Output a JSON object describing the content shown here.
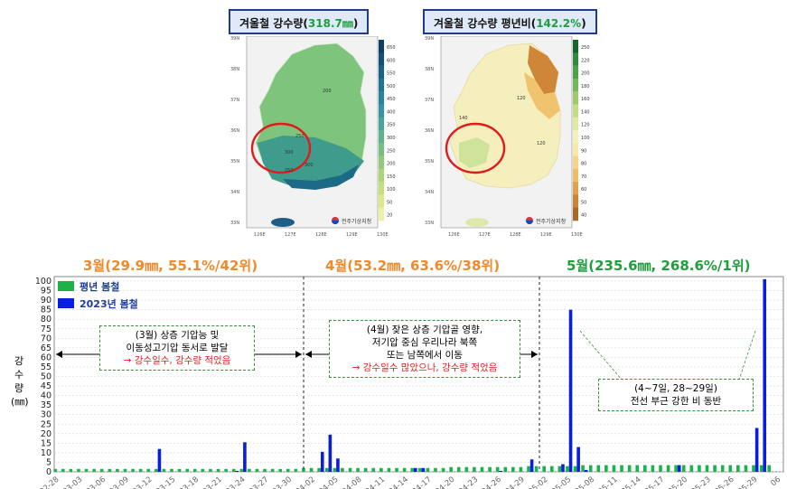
{
  "maps": {
    "left": {
      "title_prefix": "겨울철 강수량(",
      "title_value": "318.7㎜",
      "title_suffix": ")",
      "legend_ticks": [
        "650",
        "600",
        "550",
        "500",
        "450",
        "400",
        "350",
        "300",
        "250",
        "200",
        "150",
        "100",
        "50",
        "20"
      ],
      "legend_colors": [
        "#0c3e66",
        "#11507a",
        "#17618a",
        "#1d7497",
        "#25859e",
        "#3495a0",
        "#47a49a",
        "#5fb28f",
        "#78be84",
        "#93c97c",
        "#aed478",
        "#c7de7c",
        "#dde88b",
        "#edf1a3"
      ],
      "contour_labels": [
        "200",
        "250",
        "300",
        "250",
        "300"
      ],
      "x_ticks": [
        "126E",
        "127E",
        "128E",
        "129E",
        "130E"
      ],
      "y_ticks": [
        "39N",
        "38N",
        "37N",
        "36N",
        "35N",
        "34N",
        "33N"
      ],
      "logo_text": "전주기상지청"
    },
    "right": {
      "title_prefix": "겨울철 강수량 평년비(",
      "title_value": "142.2%",
      "title_suffix": ")",
      "legend_ticks": [
        "250",
        "220",
        "200",
        "180",
        "160",
        "140",
        "120",
        "100",
        "90",
        "80",
        "70",
        "60",
        "50",
        "40"
      ],
      "legend_colors": [
        "#17632c",
        "#2e8a3e",
        "#4ea04b",
        "#74b65a",
        "#9ccb6c",
        "#c3dd84",
        "#e0ea9f",
        "#f3f1bb",
        "#f8e7a8",
        "#f5d48a",
        "#eebd6a",
        "#e0a14c",
        "#c98436",
        "#a8682a"
      ],
      "contour_labels": [
        "140",
        "120",
        "120"
      ],
      "x_ticks": [
        "126E",
        "127E",
        "128E",
        "129E",
        "130E"
      ],
      "y_ticks": [
        "39N",
        "38N",
        "37N",
        "36N",
        "35N",
        "34N",
        "33N"
      ],
      "logo_text": "전주기상지청"
    }
  },
  "months": {
    "march": {
      "text": "3월(29.9㎜, 55.1%/42위)",
      "color": "#f0892a"
    },
    "april": {
      "text": "4월(53.2㎜, 63.6%/38위)",
      "color": "#f0892a"
    },
    "may": {
      "text": "5월(235.6㎜, 268.6%/1위)",
      "color": "#1e9e3c"
    }
  },
  "annotations": {
    "march": {
      "line1": "(3월) 상층 기압능 및",
      "line2": "이동성고기압 동서로 발달",
      "line3": "→ 강수일수, 강수량 적었음"
    },
    "april": {
      "line1": "(4월) 잦은 상층 기압골 영향,",
      "line2": "저기압 중심 우리나라 북쪽",
      "line3": "또는 남쪽에서 이동",
      "line4": "→ 강수일수 많았으나, 강수량 적었음"
    },
    "may": {
      "line1": "(4~7일, 28~29일)",
      "line2": "전선 부근 강한 비 동반"
    }
  },
  "y_axis_label": [
    "강",
    "수",
    "량",
    "(㎜)"
  ],
  "chart_data": {
    "type": "bar",
    "ylim": [
      0,
      100
    ],
    "y_ticks": [
      0,
      5,
      10,
      15,
      20,
      25,
      30,
      35,
      40,
      45,
      50,
      55,
      60,
      65,
      70,
      75,
      80,
      85,
      90,
      95,
      100
    ],
    "grid": "dashed",
    "legend_placement": "top-left",
    "x_tick_labels": [
      "02-28",
      "03-03",
      "03-06",
      "03-09",
      "03-12",
      "03-15",
      "03-18",
      "03-21",
      "03-24",
      "03-27",
      "03-30",
      "04-02",
      "04-05",
      "04-08",
      "04-11",
      "04-14",
      "04-17",
      "04-20",
      "04-23",
      "04-26",
      "04-29",
      "05-02",
      "05-05",
      "05-08",
      "05-11",
      "05-14",
      "05-17",
      "05-20",
      "05-23",
      "05-26",
      "05-29",
      "06"
    ],
    "series": [
      {
        "name": "평년 봄철",
        "color": "#19b34a",
        "values": [
          1.5,
          1.5,
          1.5,
          1.5,
          1.5,
          1.5,
          1.5,
          1.5,
          1.5,
          1.5,
          1.5,
          1.5,
          1.5,
          1.5,
          1.5,
          1.5,
          1.5,
          1.5,
          1.5,
          1.5,
          1.5,
          1.5,
          1.5,
          1.5,
          1.5,
          1.5,
          1.5,
          1.5,
          1.5,
          1.5,
          1.5,
          1.5,
          2.0,
          2.0,
          2.0,
          2.0,
          2.0,
          2.0,
          2.0,
          2.0,
          2.0,
          2.0,
          2.0,
          2.0,
          2.0,
          2.0,
          2.0,
          2.0,
          2.0,
          2.0,
          2.0,
          2.5,
          2.5,
          2.5,
          2.5,
          2.5,
          2.5,
          2.5,
          2.5,
          2.5,
          2.5,
          3.0,
          3.0,
          3.0,
          3.0,
          3.0,
          3.0,
          3.0,
          3.5,
          3.5,
          3.5,
          3.5,
          3.5,
          3.5,
          3.5,
          3.5,
          3.5,
          3.5,
          3.5,
          3.5,
          3.5,
          3.5,
          3.5,
          3.5,
          3.5,
          3.5,
          3.5,
          3.5,
          3.5,
          3.5,
          3.5,
          3.5,
          3.5
        ]
      },
      {
        "name": "2023년 봄철",
        "color": "#0a1ee0",
        "values": [
          0,
          0,
          0,
          0,
          0,
          0,
          0,
          0,
          0,
          0,
          0,
          0,
          0,
          12.0,
          0,
          0,
          0,
          0,
          0,
          0,
          0,
          0,
          0,
          0.5,
          15.5,
          0,
          0,
          0,
          0,
          0,
          0,
          0,
          0,
          0,
          10.5,
          19.5,
          7.0,
          0,
          0,
          0,
          0,
          0,
          0,
          0,
          0,
          0,
          2.0,
          2.0,
          0,
          0,
          0,
          0,
          0,
          0,
          0,
          0,
          0,
          0.5,
          0,
          0,
          0,
          6.5,
          0,
          0,
          0,
          4.0,
          85.0,
          13.0,
          1.0,
          0,
          0,
          0,
          0,
          0,
          0,
          0,
          0,
          0,
          0,
          0,
          3.5,
          0,
          0,
          0,
          0,
          0,
          0,
          0,
          0,
          0,
          23.0,
          101.0,
          0
        ]
      }
    ]
  }
}
